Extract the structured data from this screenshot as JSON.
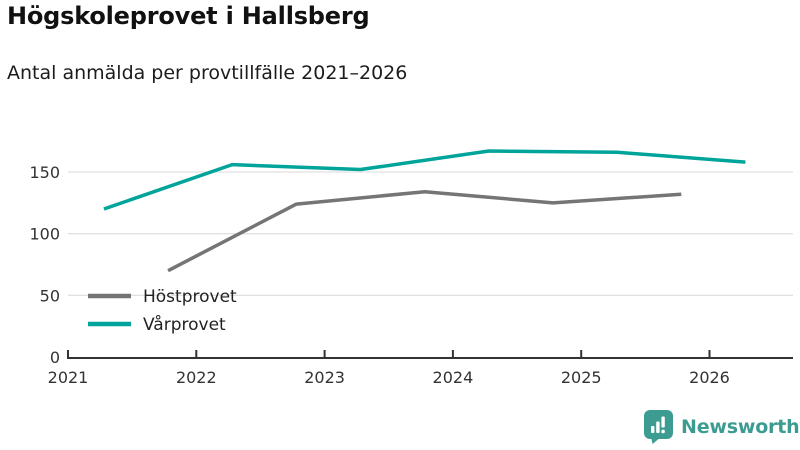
{
  "header": {
    "title": "Högskoleprovet i Hallsberg",
    "subtitle": "Antal anmälda per provtillfälle 2021–2026"
  },
  "chart_data": {
    "type": "line",
    "title": "Högskoleprovet i Hallsberg",
    "subtitle": "Antal anmälda per provtillfälle 2021–2026",
    "xlabel": "",
    "ylabel": "",
    "x_ticks": [
      2021,
      2022,
      2023,
      2024,
      2025,
      2026
    ],
    "y_ticks": [
      0,
      50,
      100,
      150
    ],
    "ylim": [
      0,
      180
    ],
    "xlim": [
      2021,
      2026.65
    ],
    "grid": "horizontal",
    "legend_position": "inside-bottom-left",
    "series": [
      {
        "name": "Höstprovet",
        "slug": "hostprovet",
        "color": "#757575",
        "x": [
          2021.78,
          2022.78,
          2023.78,
          2024.78,
          2025.78
        ],
        "values": [
          70,
          124,
          134,
          125,
          132
        ]
      },
      {
        "name": "Vårprovet",
        "slug": "varprovet",
        "color": "#00a49a",
        "x": [
          2021.28,
          2022.28,
          2023.28,
          2024.28,
          2025.28,
          2026.28
        ],
        "values": [
          120,
          156,
          152,
          167,
          166,
          158
        ]
      }
    ]
  },
  "footer": {
    "brand": "Newsworthy"
  },
  "colors": {
    "accent_teal": "#00a49a",
    "line_gray": "#757575",
    "brand_teal": "#3d9c92",
    "grid": "#e1e1e1",
    "axis": "#333333"
  }
}
